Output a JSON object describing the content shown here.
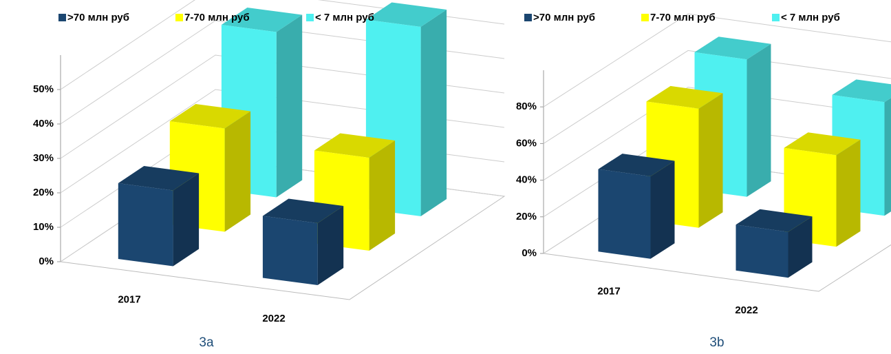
{
  "chart_data": [
    {
      "type": "bar3d",
      "caption": "3a",
      "categories": [
        "2017",
        "2022"
      ],
      "series": [
        {
          "name": ">70 млн руб",
          "color": "#1b4670",
          "values": [
            22,
            18
          ]
        },
        {
          "name": "7-70 млн руб",
          "color": "#ffff00",
          "values": [
            30,
            27
          ]
        },
        {
          "name": "< 7 млн руб",
          "color": "#4ff0f0",
          "values": [
            48,
            55
          ]
        }
      ],
      "ylim": [
        0,
        60
      ],
      "yticks": [
        {
          "value": 0,
          "label": "0%"
        },
        {
          "value": 10,
          "label": "10%"
        },
        {
          "value": 20,
          "label": "20%"
        },
        {
          "value": 30,
          "label": "30%"
        },
        {
          "value": 40,
          "label": "40%"
        },
        {
          "value": 50,
          "label": "50%"
        }
      ],
      "grid": true,
      "legend": "top"
    },
    {
      "type": "bar3d",
      "caption": "3b",
      "categories": [
        "2017",
        "2022"
      ],
      "series": [
        {
          "name": ">70 млн руб",
          "color": "#1b4670",
          "values": [
            45,
            25
          ]
        },
        {
          "name": "7-70 млн руб",
          "color": "#ffff00",
          "values": [
            65,
            50
          ]
        },
        {
          "name": "< 7 млн руб",
          "color": "#4ff0f0",
          "values": [
            75,
            62
          ]
        }
      ],
      "ylim": [
        0,
        100
      ],
      "yticks": [
        {
          "value": 0,
          "label": "0%"
        },
        {
          "value": 20,
          "label": "20%"
        },
        {
          "value": 40,
          "label": "40%"
        },
        {
          "value": 60,
          "label": "60%"
        },
        {
          "value": 80,
          "label": "80%"
        }
      ],
      "grid": true,
      "legend": "top"
    }
  ]
}
